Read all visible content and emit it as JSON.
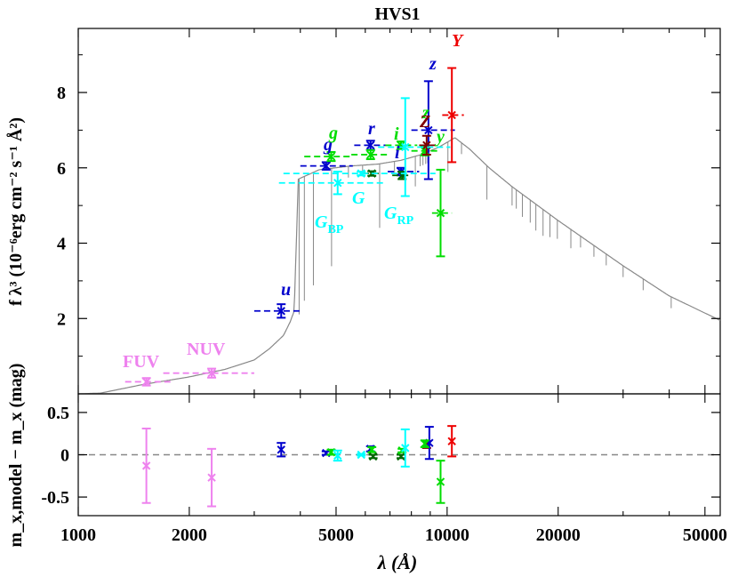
{
  "chart_data": {
    "type": "scatter",
    "title": "HVS1",
    "xscale": "log",
    "xlim": [
      1000,
      55000
    ],
    "xticks": [
      1000,
      2000,
      5000,
      10000,
      20000,
      50000
    ],
    "xlabel": "λ (Å)",
    "top": {
      "ylabel": "f λ³ (10⁻⁶erg cm⁻² s⁻¹ Å²)",
      "ylim": [
        0,
        9.7
      ],
      "yticks": [
        2,
        4,
        6,
        8
      ],
      "model_color": "#888888",
      "points": [
        {
          "label": "FUV",
          "color": "#ee82ee",
          "x": 1530,
          "xw": [
            1340,
            1800
          ],
          "y": 0.32,
          "yerr": 0.1
        },
        {
          "label": "NUV",
          "color": "#ee82ee",
          "x": 2300,
          "xw": [
            1700,
            3000
          ],
          "y": 0.55,
          "yerr": 0.12
        },
        {
          "label": "u",
          "color": "#0000cc",
          "x": 3550,
          "xw": [
            3000,
            4000
          ],
          "y": 2.2,
          "yerr": 0.18
        },
        {
          "label": "g",
          "color": "#0000cc",
          "x": 4700,
          "xw": [
            4000,
            5550
          ],
          "y": 6.05,
          "yerr": 0.1
        },
        {
          "label": "r",
          "color": "#0000cc",
          "x": 6200,
          "xw": [
            5600,
            6900
          ],
          "y": 6.6,
          "yerr": 0.12
        },
        {
          "label": "i",
          "color": "#0000cc",
          "x": 7500,
          "xw": [
            6900,
            8400
          ],
          "y": 5.9,
          "yerr": 0.1
        },
        {
          "label": "z",
          "color": "#0000cc",
          "x": 8900,
          "xw": [
            8000,
            10500
          ],
          "y": 7.0,
          "yerr": 1.3
        },
        {
          "label": "g",
          "color": "#00dd00",
          "x": 4850,
          "xw": [
            4100,
            5500
          ],
          "y": 6.3,
          "yerr": 0.12
        },
        {
          "label": "r",
          "color": "#00dd00",
          "x": 6200,
          "xw": [
            5500,
            7000
          ],
          "y": 6.35,
          "yerr": 0.12
        },
        {
          "label": "i",
          "color": "#00dd00",
          "x": 7500,
          "xw": [
            6800,
            8300
          ],
          "y": 6.6,
          "yerr": 0.1
        },
        {
          "label": "z",
          "color": "#00dd00",
          "x": 8700,
          "xw": [
            8000,
            9600
          ],
          "y": 6.45,
          "yerr": 0.12
        },
        {
          "label": "y",
          "color": "#00dd00",
          "x": 9600,
          "xw": [
            9100,
            10300
          ],
          "y": 4.8,
          "yerr": 1.15
        },
        {
          "label": "r",
          "color": "#006600",
          "x": 6250,
          "xw": [
            5900,
            6600
          ],
          "y": 5.85,
          "yerr": 0.06
        },
        {
          "label": "i",
          "color": "#006600",
          "x": 7550,
          "xw": [
            7100,
            8000
          ],
          "y": 5.8,
          "yerr": 0.1
        },
        {
          "label": "Z",
          "color": "#800000",
          "x": 8800,
          "xw": [
            8400,
            9300
          ],
          "y": 6.6,
          "yerr": 0.25
        },
        {
          "label": "Y",
          "color": "#ee0000",
          "x": 10300,
          "xw": [
            9700,
            11100
          ],
          "y": 7.4,
          "yerr": 1.25
        },
        {
          "label": "G_BP",
          "color": "#00ffff",
          "x": 5050,
          "xw": [
            3500,
            6700
          ],
          "y": 5.6,
          "yerr": 0.3
        },
        {
          "label": "G",
          "color": "#00ffff",
          "x": 5850,
          "xw": [
            3600,
            9300
          ],
          "y": 5.85,
          "yerr": 0.05
        },
        {
          "label": "G_RP",
          "color": "#00ffff",
          "x": 7700,
          "xw": [
            6500,
            10200
          ],
          "y": 6.55,
          "yerr": 1.3
        }
      ]
    },
    "bottom": {
      "ylabel": "m_x,model − m_x (mag)",
      "ylim": [
        -0.72,
        0.72
      ],
      "yticks": [
        -0.5,
        0,
        0.5
      ],
      "points": [
        {
          "label": "FUV",
          "color": "#ee82ee",
          "x": 1530,
          "y": -0.13,
          "yerr": 0.44
        },
        {
          "label": "NUV",
          "color": "#ee82ee",
          "x": 2300,
          "y": -0.27,
          "yerr": 0.34
        },
        {
          "label": "u",
          "color": "#0000cc",
          "x": 3550,
          "y": 0.06,
          "yerr": 0.08
        },
        {
          "label": "g",
          "color": "#0000cc",
          "x": 4700,
          "y": 0.02,
          "yerr": 0.02
        },
        {
          "label": "g",
          "color": "#00dd00",
          "x": 4850,
          "y": 0.03,
          "yerr": 0.03
        },
        {
          "label": "G_BP",
          "color": "#00ffff",
          "x": 5050,
          "y": -0.01,
          "yerr": 0.06
        },
        {
          "label": "G",
          "color": "#00ffff",
          "x": 5850,
          "y": 0.0,
          "yerr": 0.01
        },
        {
          "label": "r",
          "color": "#0000cc",
          "x": 6200,
          "y": 0.07,
          "yerr": 0.03
        },
        {
          "label": "r",
          "color": "#00dd00",
          "x": 6250,
          "y": 0.06,
          "yerr": 0.03
        },
        {
          "label": "r",
          "color": "#006600",
          "x": 6300,
          "y": -0.02,
          "yerr": 0.02
        },
        {
          "label": "i",
          "color": "#006600",
          "x": 7500,
          "y": -0.02,
          "yerr": 0.02
        },
        {
          "label": "i",
          "color": "#00dd00",
          "x": 7550,
          "y": 0.05,
          "yerr": 0.02
        },
        {
          "label": "G_RP",
          "color": "#00ffff",
          "x": 7700,
          "y": 0.08,
          "yerr": 0.22
        },
        {
          "label": "Z",
          "color": "#800000",
          "x": 8800,
          "y": 0.12,
          "yerr": 0.04
        },
        {
          "label": "z",
          "color": "#0000cc",
          "x": 8950,
          "y": 0.14,
          "yerr": 0.19
        },
        {
          "label": "z",
          "color": "#00dd00",
          "x": 8700,
          "y": 0.13,
          "yerr": 0.04
        },
        {
          "label": "y",
          "color": "#00dd00",
          "x": 9600,
          "y": -0.32,
          "yerr": 0.25
        },
        {
          "label": "Y",
          "color": "#ee0000",
          "x": 10300,
          "y": 0.16,
          "yerr": 0.18
        }
      ]
    }
  }
}
